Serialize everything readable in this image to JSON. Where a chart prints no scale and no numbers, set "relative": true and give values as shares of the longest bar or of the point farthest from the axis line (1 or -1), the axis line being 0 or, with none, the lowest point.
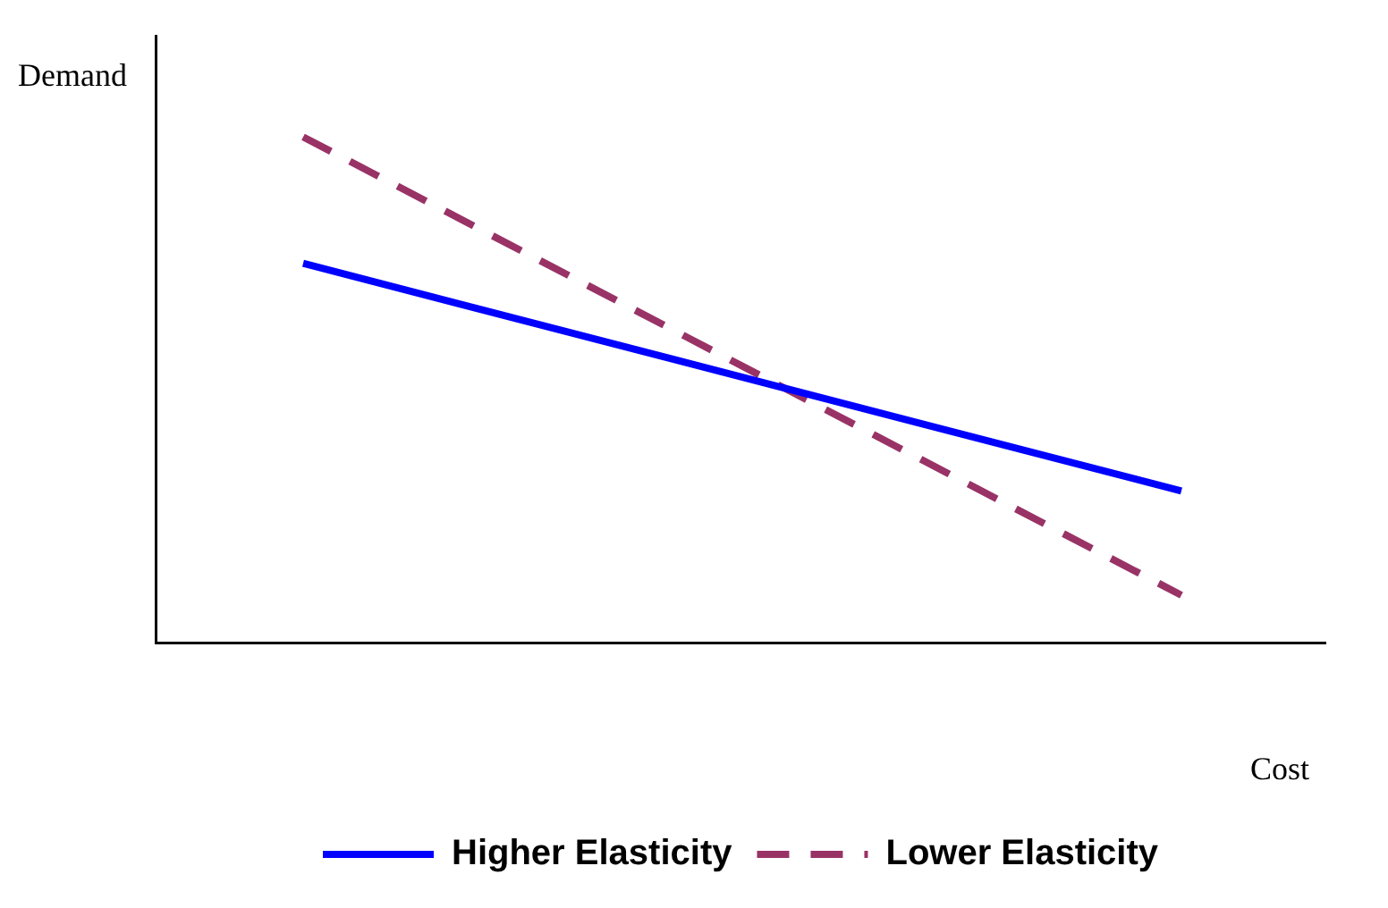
{
  "chart_data": {
    "type": "line",
    "relative": true,
    "xlabel": "Cost",
    "ylabel": "Demand",
    "categories": [
      null,
      null
    ],
    "legend": "bottom",
    "marker": "none",
    "grid": false,
    "series": [
      {
        "name": "Higher Elasticity",
        "color": "#0000ff",
        "line_style": "solid",
        "values": [
          0.75,
          0.3
        ]
      },
      {
        "name": "Lower Elasticity",
        "color": "#993366",
        "line_style": "dashed",
        "values": [
          1,
          0.094
        ]
      }
    ]
  }
}
